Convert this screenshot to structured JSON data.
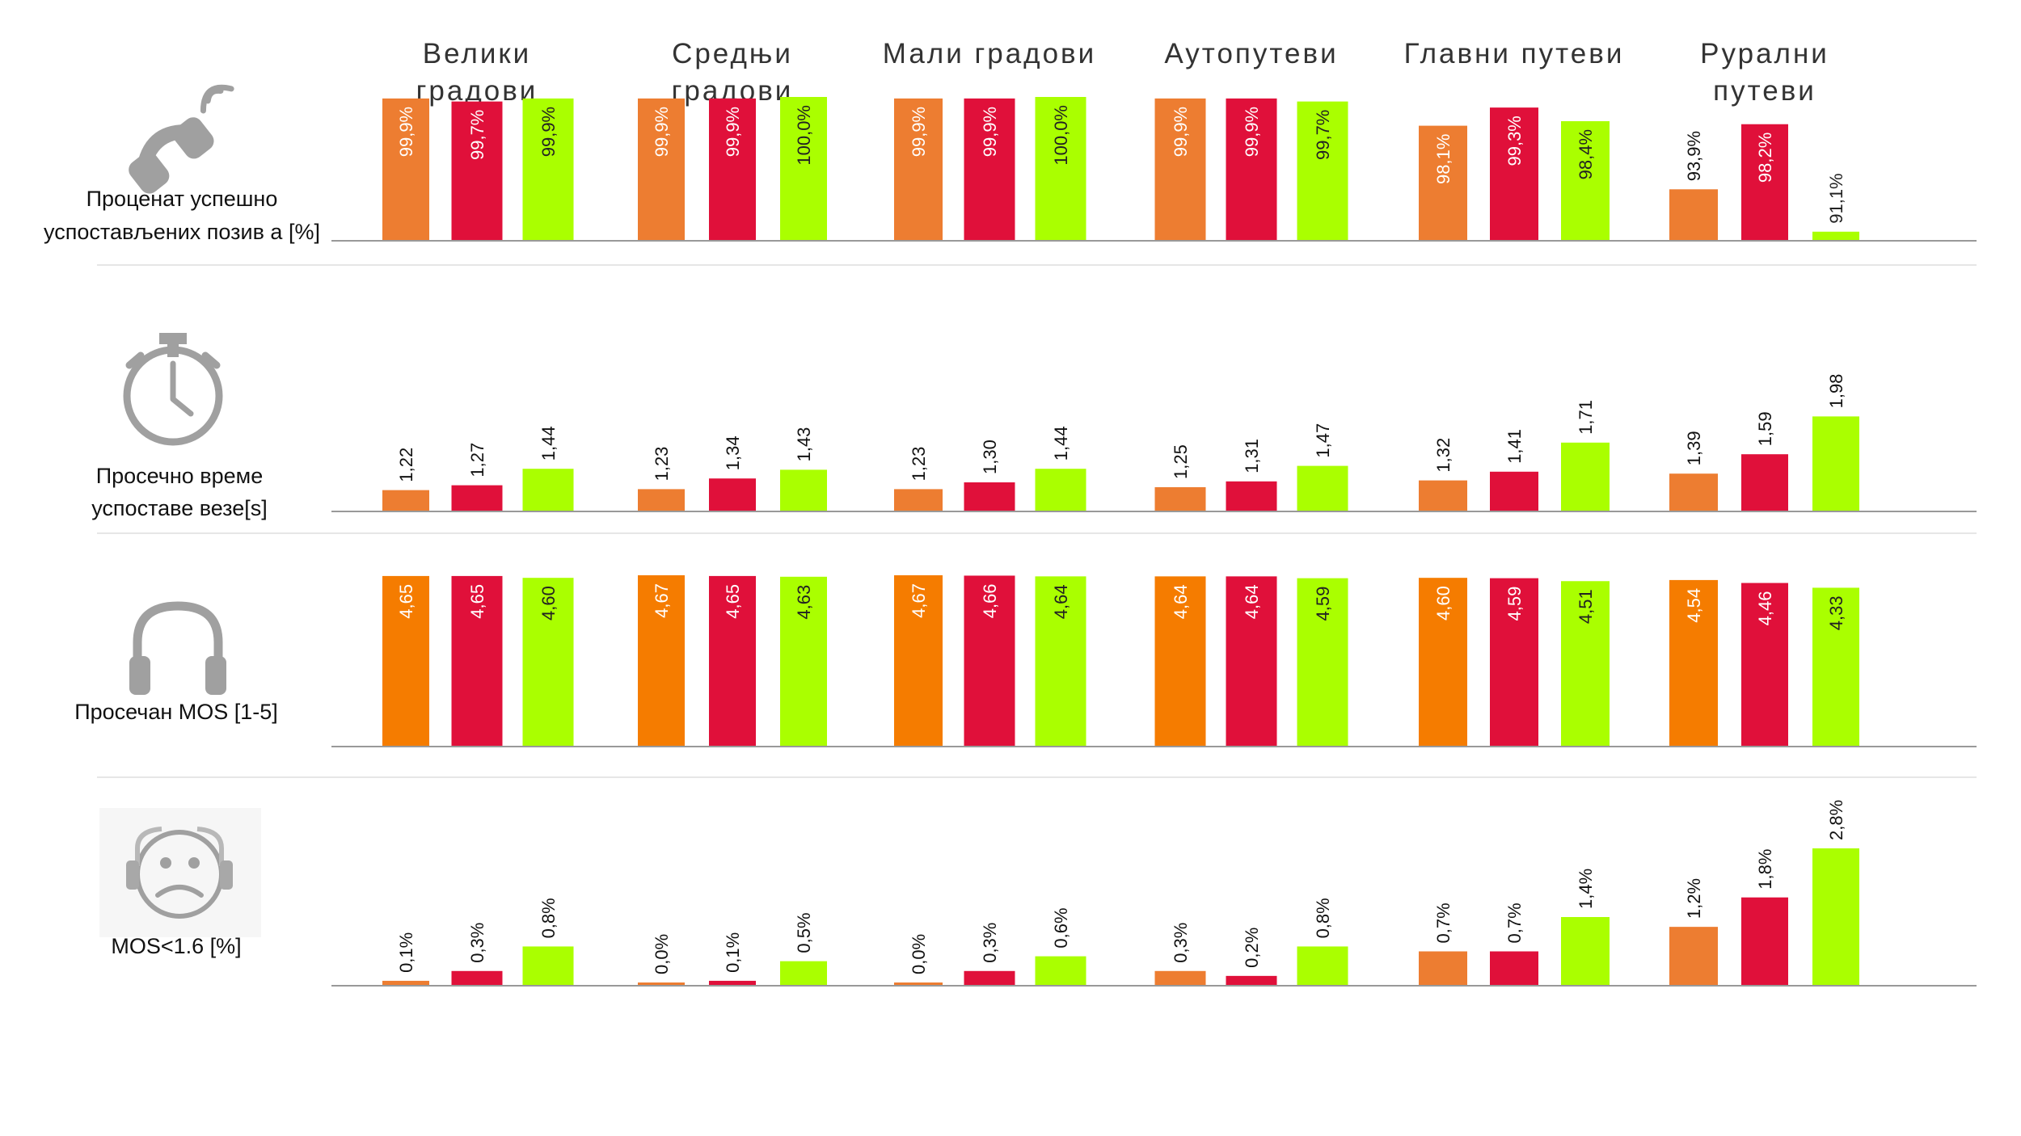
{
  "colors": {
    "series": [
      "#ED7D31",
      "#E0103A",
      "#AAFF00"
    ],
    "series_mos": [
      "#F57C00",
      "#E0103A",
      "#AAFF00"
    ],
    "axis": "#999999",
    "separator": "#e6e6e6",
    "icon": "#a0a0a0"
  },
  "icons": [
    "phone-icon",
    "stopwatch-icon",
    "headphones-icon",
    "sad-face-headphones-icon"
  ],
  "chart_data": [
    {
      "type": "bar",
      "metric_label": [
        "Проценат успешно",
        "успостављених позив а [%]"
      ],
      "categories": [
        [
          "Велики",
          "градови"
        ],
        [
          "Средњи",
          "градови"
        ],
        [
          "Мали градови"
        ],
        [
          "Аутопутеви"
        ],
        [
          "Главни путеви"
        ],
        [
          "Рурални",
          "путеви"
        ]
      ],
      "series": [
        {
          "values": [
            99.9,
            99.9,
            99.9,
            99.9,
            98.1,
            93.9
          ],
          "labels": [
            "99,9%",
            "99,9%",
            "99,9%",
            "99,9%",
            "98,1%",
            "93,9%"
          ]
        },
        {
          "values": [
            99.7,
            99.9,
            99.9,
            99.9,
            99.3,
            98.2
          ],
          "labels": [
            "99,7%",
            "99,9%",
            "99,9%",
            "99,9%",
            "99,3%",
            "98,2%"
          ]
        },
        {
          "values": [
            99.9,
            100.0,
            100.0,
            99.7,
            98.4,
            91.1
          ],
          "labels": [
            "99,9%",
            "100,0%",
            "100,0%",
            "99,7%",
            "98,4%",
            "91,1%"
          ]
        }
      ],
      "ylim": [
        90.5,
        100
      ]
    },
    {
      "type": "bar",
      "metric_label": [
        "Просечно време",
        "успоставе везе[s]"
      ],
      "series": [
        {
          "values": [
            1.22,
            1.23,
            1.23,
            1.25,
            1.32,
            1.39
          ],
          "labels": [
            "1,22",
            "1,23",
            "1,23",
            "1,25",
            "1,32",
            "1,39"
          ]
        },
        {
          "values": [
            1.27,
            1.34,
            1.3,
            1.31,
            1.41,
            1.59
          ],
          "labels": [
            "1,27",
            "1,34",
            "1,30",
            "1,31",
            "1,41",
            "1,59"
          ]
        },
        {
          "values": [
            1.44,
            1.43,
            1.44,
            1.47,
            1.71,
            1.98
          ],
          "labels": [
            "1,44",
            "1,43",
            "1,44",
            "1,47",
            "1,71",
            "1,98"
          ]
        }
      ],
      "ylim": [
        1.0,
        2.0
      ]
    },
    {
      "type": "bar",
      "metric_label": [
        "Просечан MOS [1-5]"
      ],
      "series": [
        {
          "values": [
            4.65,
            4.67,
            4.67,
            4.64,
            4.6,
            4.54
          ],
          "labels": [
            "4,65",
            "4,67",
            "4,67",
            "4,64",
            "4,60",
            "4,54"
          ]
        },
        {
          "values": [
            4.65,
            4.65,
            4.66,
            4.64,
            4.59,
            4.46
          ],
          "labels": [
            "4,65",
            "4,65",
            "4,66",
            "4,64",
            "4,59",
            "4,46"
          ]
        },
        {
          "values": [
            4.6,
            4.63,
            4.64,
            4.59,
            4.51,
            4.33
          ],
          "labels": [
            "4,60",
            "4,63",
            "4,64",
            "4,59",
            "4,51",
            "4,33"
          ]
        }
      ],
      "ylim": [
        0,
        4.67
      ]
    },
    {
      "type": "bar",
      "metric_label": [
        "MOS<1.6 [%]"
      ],
      "series": [
        {
          "values": [
            0.1,
            0.0,
            0.0,
            0.3,
            0.7,
            1.2
          ],
          "labels": [
            "0,1%",
            "0,0%",
            "0,0%",
            "0,3%",
            "0,7%",
            "1,2%"
          ]
        },
        {
          "values": [
            0.3,
            0.1,
            0.3,
            0.2,
            0.7,
            1.8
          ],
          "labels": [
            "0,3%",
            "0,1%",
            "0,3%",
            "0,2%",
            "0,7%",
            "1,8%"
          ]
        },
        {
          "values": [
            0.8,
            0.5,
            0.6,
            0.8,
            1.4,
            2.8
          ],
          "labels": [
            "0,8%",
            "0,5%",
            "0,6%",
            "0,8%",
            "1,4%",
            "2,8%"
          ]
        }
      ],
      "ylim": [
        0,
        2.8
      ]
    }
  ]
}
